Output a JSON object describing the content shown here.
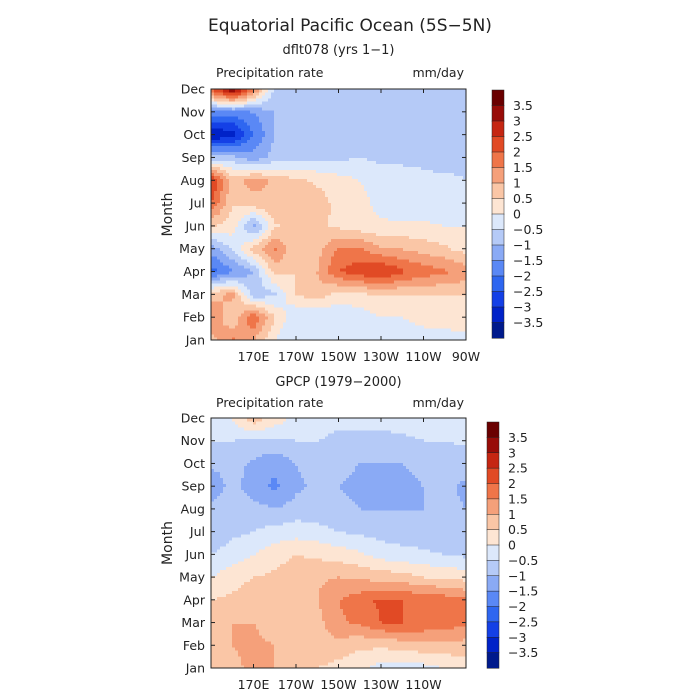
{
  "figure": {
    "title": "Equatorial Pacific Ocean (5S−5N)"
  },
  "chart_data": [
    {
      "type": "heatmap",
      "subtitle": "dflt078 (yrs 1−1)",
      "left_label": "Precipitation rate",
      "right_label": "mm/day",
      "ylabel": "Month",
      "y_ticks": [
        "Jan",
        "Feb",
        "Mar",
        "Apr",
        "May",
        "Jun",
        "Jul",
        "Aug",
        "Sep",
        "Oct",
        "Nov",
        "Dec"
      ],
      "x_ticks": [
        "170E",
        "170W",
        "150W",
        "130W",
        "110W",
        "90W"
      ],
      "x_tick_lon": [
        170,
        190,
        210,
        230,
        250,
        270
      ],
      "xlim": [
        150,
        270
      ],
      "levels": [
        -3.5,
        -3,
        -2.5,
        -2,
        -1.5,
        -1,
        -0.5,
        0,
        0.5,
        1,
        1.5,
        2,
        2.5,
        3,
        3.5
      ],
      "colorbar_labels": [
        "3.5",
        "3",
        "2.5",
        "2",
        "1.5",
        "1",
        "0.5",
        "0",
        "−0.5",
        "−1",
        "−1.5",
        "−2",
        "−2.5",
        "−3",
        "−3.5"
      ],
      "colors": [
        "#001a8c",
        "#0022c8",
        "#1440e6",
        "#2e66f0",
        "#5a88f5",
        "#8aaaf5",
        "#b5caf7",
        "#dce8fb",
        "#fde5d3",
        "#fac6a6",
        "#f5a07a",
        "#ef7549",
        "#e14a25",
        "#c52612",
        "#980c08",
        "#6a0000"
      ],
      "lon": [
        150,
        160,
        170,
        180,
        190,
        200,
        210,
        220,
        230,
        240,
        250,
        260,
        270
      ],
      "grid": [
        [
          0.8,
          1.6,
          1.0,
          0.0,
          -0.5,
          -0.5,
          -0.5,
          -0.3,
          -0.3,
          -0.3,
          -0.3,
          -0.3,
          -0.3
        ],
        [
          1.5,
          0.5,
          2.0,
          0.5,
          -0.5,
          -0.5,
          -0.5,
          -0.3,
          0.0,
          0.0,
          0.2,
          0.3,
          0.5
        ],
        [
          0.8,
          1.2,
          -0.8,
          -0.6,
          0.5,
          0.8,
          0.3,
          0.4,
          0.5,
          0.5,
          0.5,
          0.5,
          0.5
        ],
        [
          -2.2,
          -1.6,
          -1.0,
          0.7,
          0.5,
          1.0,
          2.0,
          2.3,
          2.6,
          2.1,
          1.8,
          1.6,
          1.3
        ],
        [
          -1.3,
          -0.5,
          0.7,
          1.6,
          0.5,
          0.8,
          1.6,
          1.6,
          1.1,
          1.0,
          0.8,
          0.6,
          0.3
        ],
        [
          0.5,
          0.3,
          -1.2,
          0.4,
          0.8,
          0.6,
          0.4,
          0.2,
          0.1,
          0.1,
          0.1,
          0.0,
          0.0
        ],
        [
          2.0,
          0.5,
          0.8,
          1.0,
          1.0,
          0.8,
          0.3,
          0.2,
          -0.2,
          -0.3,
          -0.3,
          -0.3,
          -0.3
        ],
        [
          2.6,
          0.8,
          1.2,
          0.9,
          0.6,
          0.4,
          0.2,
          0.0,
          -0.3,
          -0.3,
          -0.4,
          -0.4,
          -0.5
        ],
        [
          -0.8,
          -0.8,
          -1.3,
          -0.8,
          -0.6,
          -0.6,
          -0.6,
          -0.5,
          -0.6,
          -0.6,
          -0.6,
          -0.7,
          -0.6
        ],
        [
          -3.5,
          -3.3,
          -2.0,
          -1.0,
          -0.9,
          -0.8,
          -0.8,
          -0.8,
          -0.8,
          -0.8,
          -0.9,
          -0.9,
          -0.8
        ],
        [
          -1.6,
          -1.8,
          -1.5,
          -1.0,
          -0.8,
          -0.8,
          -0.8,
          -0.8,
          -0.8,
          -0.8,
          -0.8,
          -0.8,
          -0.8
        ],
        [
          2.0,
          3.6,
          1.6,
          -0.6,
          -0.8,
          -0.8,
          -0.8,
          -0.8,
          -0.8,
          -0.8,
          -0.8,
          -0.8,
          -0.8
        ]
      ]
    },
    {
      "type": "heatmap",
      "subtitle": "GPCP (1979−2000)",
      "left_label": "Precipitation rate",
      "right_label": "mm/day",
      "ylabel": "Month",
      "y_ticks": [
        "Jan",
        "Feb",
        "Mar",
        "Apr",
        "May",
        "Jun",
        "Jul",
        "Aug",
        "Sep",
        "Oct",
        "Nov",
        "Dec"
      ],
      "x_ticks": [
        "170E",
        "170W",
        "150W",
        "130W",
        "110W"
      ],
      "x_tick_lon": [
        170,
        190,
        210,
        230,
        250
      ],
      "xlim": [
        150,
        270
      ],
      "levels": [
        -3.5,
        -3,
        -2.5,
        -2,
        -1.5,
        -1,
        -0.5,
        0,
        0.5,
        1,
        1.5,
        2,
        2.5,
        3,
        3.5
      ],
      "colorbar_labels": [
        "3.5",
        "3",
        "2.5",
        "2",
        "1.5",
        "1",
        "0.5",
        "0",
        "−0.5",
        "−1",
        "−1.5",
        "−2",
        "−2.5",
        "−3",
        "−3.5"
      ],
      "colors": [
        "#001a8c",
        "#0022c8",
        "#1440e6",
        "#2e66f0",
        "#5a88f5",
        "#8aaaf5",
        "#b5caf7",
        "#dce8fb",
        "#fde5d3",
        "#fac6a6",
        "#f5a07a",
        "#ef7549",
        "#e14a25",
        "#c52612",
        "#980c08",
        "#6a0000"
      ],
      "lon": [
        150,
        160,
        170,
        180,
        190,
        200,
        210,
        220,
        230,
        240,
        250,
        260,
        270
      ],
      "grid": [
        [
          0.5,
          0.8,
          1.2,
          1.0,
          0.8,
          0.5,
          0.3,
          0.1,
          -0.2,
          -0.3,
          -0.2,
          0.0,
          0.2
        ],
        [
          0.6,
          1.0,
          1.2,
          1.0,
          0.8,
          0.9,
          0.8,
          0.6,
          0.6,
          0.7,
          0.8,
          0.8,
          0.8
        ],
        [
          0.5,
          1.0,
          1.0,
          0.6,
          0.6,
          0.8,
          1.4,
          1.6,
          2.0,
          2.0,
          1.9,
          1.8,
          1.6
        ],
        [
          0.5,
          0.6,
          0.8,
          0.8,
          0.8,
          1.0,
          1.5,
          1.8,
          2.1,
          2.0,
          1.9,
          1.8,
          1.6
        ],
        [
          0.0,
          0.3,
          0.5,
          0.6,
          0.8,
          0.9,
          1.0,
          0.9,
          0.8,
          0.7,
          0.5,
          0.4,
          0.3
        ],
        [
          -0.5,
          -0.3,
          0.0,
          0.3,
          0.5,
          0.4,
          0.3,
          0.1,
          -0.2,
          -0.3,
          -0.4,
          -0.5,
          -0.6
        ],
        [
          -0.8,
          -0.6,
          -0.5,
          -0.3,
          -0.2,
          -0.3,
          -0.5,
          -0.6,
          -0.7,
          -0.8,
          -0.8,
          -0.8,
          -1.0
        ],
        [
          -0.8,
          -0.7,
          -0.8,
          -1.0,
          -0.8,
          -0.8,
          -0.9,
          -1.0,
          -1.0,
          -1.0,
          -1.0,
          -0.9,
          -1.0
        ],
        [
          -1.4,
          -0.8,
          -1.3,
          -1.6,
          -1.1,
          -0.9,
          -1.0,
          -1.1,
          -1.2,
          -1.1,
          -1.0,
          -0.9,
          -1.1
        ],
        [
          -0.9,
          -0.8,
          -1.1,
          -1.4,
          -1.0,
          -0.8,
          -0.9,
          -1.0,
          -1.0,
          -1.0,
          -0.9,
          -0.8,
          -0.8
        ],
        [
          -0.5,
          -0.5,
          -0.6,
          -0.6,
          -0.5,
          -0.5,
          -0.6,
          -0.6,
          -0.6,
          -0.6,
          -0.5,
          -0.5,
          -0.4
        ],
        [
          -0.2,
          0.0,
          0.8,
          0.3,
          -0.2,
          -0.3,
          -0.4,
          -0.4,
          -0.4,
          -0.3,
          -0.3,
          -0.2,
          -0.2
        ]
      ]
    }
  ]
}
